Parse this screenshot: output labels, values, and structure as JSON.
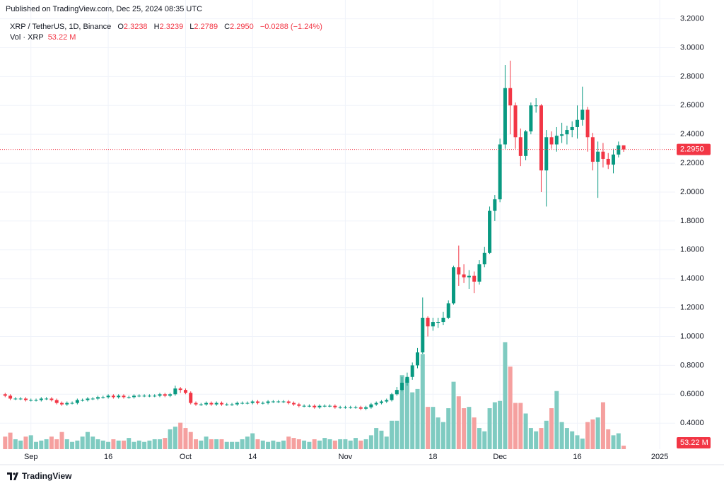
{
  "chart_data": {
    "type": "candlestick",
    "published": "Published on TradingView.com, Dec 25, 2024 08:35 UTC",
    "symbol": "XRP / TetherUS, 1D, Binance",
    "ohlc_legend": [
      {
        "label": "O",
        "value": "2.3238"
      },
      {
        "label": "H",
        "value": "2.3239"
      },
      {
        "label": "L",
        "value": "2.2789"
      },
      {
        "label": "C",
        "value": "2.2950"
      }
    ],
    "change": "−0.0288 (−1.24%)",
    "volume_title": "Vol · XRP",
    "last_volume_label": "53.22 M",
    "last_price_label": "2.2950",
    "brand": "TradingView",
    "up_color": "#089981",
    "down_color": "#f23645",
    "up_volume_color": "#7fcbc1",
    "down_volume_color": "#f5a09f",
    "grid": true,
    "xlim": [
      "2024-08-26",
      "2025-01-04"
    ],
    "xticks": [
      {
        "value": "2024-09-01",
        "label": "Sep"
      },
      {
        "value": "2024-09-16",
        "label": "16"
      },
      {
        "value": "2024-10-01",
        "label": "Oct"
      },
      {
        "value": "2024-10-14",
        "label": "14"
      },
      {
        "value": "2024-11-01",
        "label": "Nov"
      },
      {
        "value": "2024-11-18",
        "label": "18"
      },
      {
        "value": "2024-12-01",
        "label": "Dec"
      },
      {
        "value": "2024-12-16",
        "label": "16"
      },
      {
        "value": "2025-01-01",
        "label": "2025"
      }
    ],
    "ylim": [
      0.22,
      3.33
    ],
    "yticks": [
      {
        "value": 0.4,
        "label": "0.4000"
      },
      {
        "value": 0.6,
        "label": "0.6000"
      },
      {
        "value": 0.8,
        "label": "0.8000"
      },
      {
        "value": 1,
        "label": "1.0000"
      },
      {
        "value": 1.2,
        "label": "1.2000"
      },
      {
        "value": 1.4,
        "label": "1.4000"
      },
      {
        "value": 1.6,
        "label": "1.6000"
      },
      {
        "value": 1.8,
        "label": "1.8000"
      },
      {
        "value": 2,
        "label": "2.0000"
      },
      {
        "value": 2.2,
        "label": "2.2000"
      },
      {
        "value": 2.4,
        "label": "2.4000"
      },
      {
        "value": 2.6,
        "label": "2.6000"
      },
      {
        "value": 2.8,
        "label": "2.8000"
      },
      {
        "value": 3,
        "label": "3.0000"
      },
      {
        "value": 3.2,
        "label": "3.2000"
      }
    ],
    "volume_lim": [
      0,
      3400
    ],
    "x": [
      "2024-08-27",
      "2024-08-28",
      "2024-08-29",
      "2024-08-30",
      "2024-08-31",
      "2024-09-01",
      "2024-09-02",
      "2024-09-03",
      "2024-09-04",
      "2024-09-05",
      "2024-09-06",
      "2024-09-07",
      "2024-09-08",
      "2024-09-09",
      "2024-09-10",
      "2024-09-11",
      "2024-09-12",
      "2024-09-13",
      "2024-09-14",
      "2024-09-15",
      "2024-09-16",
      "2024-09-17",
      "2024-09-18",
      "2024-09-19",
      "2024-09-20",
      "2024-09-21",
      "2024-09-22",
      "2024-09-23",
      "2024-09-24",
      "2024-09-25",
      "2024-09-26",
      "2024-09-27",
      "2024-09-28",
      "2024-09-29",
      "2024-09-30",
      "2024-10-01",
      "2024-10-02",
      "2024-10-03",
      "2024-10-04",
      "2024-10-05",
      "2024-10-06",
      "2024-10-07",
      "2024-10-08",
      "2024-10-09",
      "2024-10-10",
      "2024-10-11",
      "2024-10-12",
      "2024-10-13",
      "2024-10-14",
      "2024-10-15",
      "2024-10-16",
      "2024-10-17",
      "2024-10-18",
      "2024-10-19",
      "2024-10-20",
      "2024-10-21",
      "2024-10-22",
      "2024-10-23",
      "2024-10-24",
      "2024-10-25",
      "2024-10-26",
      "2024-10-27",
      "2024-10-28",
      "2024-10-29",
      "2024-10-30",
      "2024-10-31",
      "2024-11-01",
      "2024-11-02",
      "2024-11-03",
      "2024-11-04",
      "2024-11-05",
      "2024-11-06",
      "2024-11-07",
      "2024-11-08",
      "2024-11-09",
      "2024-11-10",
      "2024-11-11",
      "2024-11-12",
      "2024-11-13",
      "2024-11-14",
      "2024-11-15",
      "2024-11-16",
      "2024-11-17",
      "2024-11-18",
      "2024-11-19",
      "2024-11-20",
      "2024-11-21",
      "2024-11-22",
      "2024-11-23",
      "2024-11-24",
      "2024-11-25",
      "2024-11-26",
      "2024-11-27",
      "2024-11-28",
      "2024-11-29",
      "2024-11-30",
      "2024-12-01",
      "2024-12-02",
      "2024-12-03",
      "2024-12-04",
      "2024-12-05",
      "2024-12-06",
      "2024-12-07",
      "2024-12-08",
      "2024-12-09",
      "2024-12-10",
      "2024-12-11",
      "2024-12-12",
      "2024-12-13",
      "2024-12-14",
      "2024-12-15",
      "2024-12-16",
      "2024-12-17",
      "2024-12-18",
      "2024-12-19",
      "2024-12-20",
      "2024-12-21",
      "2024-12-22",
      "2024-12-23",
      "2024-12-24",
      "2024-12-25"
    ],
    "open": [
      0.6,
      0.59,
      0.57,
      0.57,
      0.57,
      0.56,
      0.56,
      0.56,
      0.57,
      0.57,
      0.56,
      0.54,
      0.53,
      0.54,
      0.54,
      0.56,
      0.56,
      0.57,
      0.57,
      0.58,
      0.58,
      0.59,
      0.58,
      0.59,
      0.58,
      0.58,
      0.59,
      0.59,
      0.59,
      0.59,
      0.59,
      0.6,
      0.59,
      0.6,
      0.64,
      0.63,
      0.61,
      0.54,
      0.53,
      0.53,
      0.54,
      0.53,
      0.54,
      0.53,
      0.53,
      0.53,
      0.54,
      0.54,
      0.54,
      0.55,
      0.54,
      0.54,
      0.55,
      0.55,
      0.55,
      0.55,
      0.54,
      0.53,
      0.52,
      0.52,
      0.52,
      0.51,
      0.52,
      0.52,
      0.52,
      0.51,
      0.51,
      0.51,
      0.51,
      0.51,
      0.5,
      0.51,
      0.53,
      0.54,
      0.55,
      0.56,
      0.6,
      0.63,
      0.68,
      0.72,
      0.8,
      0.89,
      1.13,
      1.07,
      1.1,
      1.1,
      1.13,
      1.23,
      1.48,
      1.43,
      1.41,
      1.42,
      1.38,
      1.5,
      1.58,
      1.87,
      1.95,
      2.33,
      2.72,
      2.6,
      2.38,
      2.25,
      2.42,
      2.6,
      2.6,
      2.15,
      2.38,
      2.33,
      2.39,
      2.4,
      2.43,
      2.45,
      2.5,
      2.57,
      2.38,
      2.21,
      2.28,
      2.23,
      2.19,
      2.26,
      2.3238
    ],
    "high": [
      0.61,
      0.6,
      0.58,
      0.58,
      0.58,
      0.57,
      0.57,
      0.58,
      0.58,
      0.58,
      0.57,
      0.55,
      0.55,
      0.55,
      0.57,
      0.57,
      0.58,
      0.58,
      0.59,
      0.59,
      0.6,
      0.6,
      0.6,
      0.6,
      0.59,
      0.6,
      0.6,
      0.6,
      0.6,
      0.6,
      0.61,
      0.61,
      0.61,
      0.66,
      0.65,
      0.64,
      0.62,
      0.55,
      0.54,
      0.55,
      0.55,
      0.55,
      0.55,
      0.54,
      0.54,
      0.55,
      0.55,
      0.55,
      0.56,
      0.56,
      0.55,
      0.56,
      0.56,
      0.56,
      0.56,
      0.56,
      0.55,
      0.54,
      0.53,
      0.53,
      0.53,
      0.53,
      0.53,
      0.53,
      0.53,
      0.52,
      0.52,
      0.52,
      0.52,
      0.52,
      0.52,
      0.54,
      0.55,
      0.56,
      0.57,
      0.61,
      0.65,
      0.72,
      0.75,
      0.82,
      0.92,
      1.27,
      1.14,
      1.13,
      1.13,
      1.17,
      1.25,
      1.49,
      1.63,
      1.5,
      1.46,
      1.45,
      1.53,
      1.62,
      1.9,
      1.98,
      2.37,
      2.88,
      2.91,
      2.62,
      2.44,
      2.43,
      2.62,
      2.65,
      2.61,
      2.43,
      2.42,
      2.45,
      2.48,
      2.46,
      2.49,
      2.6,
      2.73,
      2.59,
      2.41,
      2.35,
      2.34,
      2.27,
      2.3,
      2.35,
      2.3239
    ],
    "low": [
      0.58,
      0.56,
      0.56,
      0.56,
      0.55,
      0.55,
      0.55,
      0.55,
      0.56,
      0.55,
      0.53,
      0.52,
      0.52,
      0.53,
      0.53,
      0.55,
      0.55,
      0.56,
      0.56,
      0.57,
      0.57,
      0.57,
      0.57,
      0.57,
      0.57,
      0.57,
      0.58,
      0.58,
      0.58,
      0.58,
      0.58,
      0.58,
      0.58,
      0.59,
      0.61,
      0.6,
      0.53,
      0.52,
      0.52,
      0.52,
      0.52,
      0.52,
      0.52,
      0.52,
      0.52,
      0.52,
      0.53,
      0.53,
      0.53,
      0.53,
      0.53,
      0.53,
      0.54,
      0.54,
      0.54,
      0.53,
      0.52,
      0.51,
      0.51,
      0.51,
      0.5,
      0.5,
      0.51,
      0.51,
      0.5,
      0.5,
      0.5,
      0.5,
      0.5,
      0.49,
      0.49,
      0.5,
      0.52,
      0.53,
      0.54,
      0.55,
      0.59,
      0.62,
      0.66,
      0.7,
      0.78,
      0.88,
      1.0,
      1.04,
      1.06,
      1.08,
      1.12,
      1.22,
      1.35,
      1.37,
      1.33,
      1.3,
      1.36,
      1.48,
      1.57,
      1.8,
      1.93,
      2.3,
      2.4,
      2.3,
      2.18,
      2.22,
      2.4,
      2.55,
      2.0,
      1.9,
      2.3,
      2.28,
      2.34,
      2.33,
      2.38,
      2.37,
      2.46,
      2.28,
      2.15,
      1.96,
      2.17,
      2.16,
      2.13,
      2.24,
      2.2789
    ],
    "close": [
      0.59,
      0.57,
      0.57,
      0.57,
      0.56,
      0.56,
      0.56,
      0.57,
      0.57,
      0.56,
      0.54,
      0.53,
      0.54,
      0.54,
      0.56,
      0.56,
      0.57,
      0.57,
      0.58,
      0.58,
      0.59,
      0.58,
      0.59,
      0.58,
      0.58,
      0.59,
      0.59,
      0.59,
      0.59,
      0.59,
      0.6,
      0.59,
      0.6,
      0.64,
      0.63,
      0.61,
      0.54,
      0.53,
      0.53,
      0.54,
      0.53,
      0.54,
      0.53,
      0.53,
      0.53,
      0.54,
      0.54,
      0.54,
      0.55,
      0.54,
      0.54,
      0.55,
      0.55,
      0.55,
      0.55,
      0.54,
      0.53,
      0.52,
      0.52,
      0.52,
      0.51,
      0.52,
      0.52,
      0.52,
      0.51,
      0.51,
      0.51,
      0.51,
      0.51,
      0.5,
      0.51,
      0.53,
      0.54,
      0.55,
      0.56,
      0.6,
      0.63,
      0.68,
      0.72,
      0.8,
      0.89,
      1.13,
      1.07,
      1.1,
      1.1,
      1.13,
      1.23,
      1.48,
      1.43,
      1.41,
      1.42,
      1.38,
      1.5,
      1.58,
      1.87,
      1.95,
      2.33,
      2.72,
      2.6,
      2.38,
      2.25,
      2.42,
      2.6,
      2.6,
      2.15,
      2.38,
      2.33,
      2.39,
      2.4,
      2.43,
      2.45,
      2.5,
      2.57,
      2.38,
      2.21,
      2.28,
      2.23,
      2.19,
      2.26,
      2.3238,
      2.295
    ],
    "volume": [
      190,
      250,
      150,
      130,
      190,
      210,
      110,
      130,
      150,
      190,
      150,
      260,
      150,
      110,
      130,
      190,
      260,
      190,
      150,
      130,
      110,
      150,
      130,
      130,
      170,
      110,
      130,
      110,
      130,
      150,
      150,
      170,
      300,
      340,
      400,
      320,
      260,
      150,
      130,
      190,
      150,
      150,
      150,
      110,
      110,
      110,
      150,
      190,
      240,
      150,
      130,
      110,
      130,
      110,
      130,
      190,
      170,
      150,
      130,
      110,
      150,
      130,
      170,
      150,
      130,
      150,
      150,
      130,
      170,
      130,
      150,
      210,
      320,
      280,
      190,
      430,
      430,
      1120,
      1070,
      860,
      910,
      1440,
      640,
      640,
      480,
      410,
      620,
      1020,
      800,
      620,
      640,
      480,
      320,
      270,
      620,
      710,
      730,
      1620,
      1250,
      700,
      700,
      540,
      320,
      270,
      320,
      430,
      620,
      880,
      410,
      320,
      270,
      210,
      160,
      410,
      450,
      480,
      710,
      300,
      210,
      240,
      53.22
    ]
  }
}
